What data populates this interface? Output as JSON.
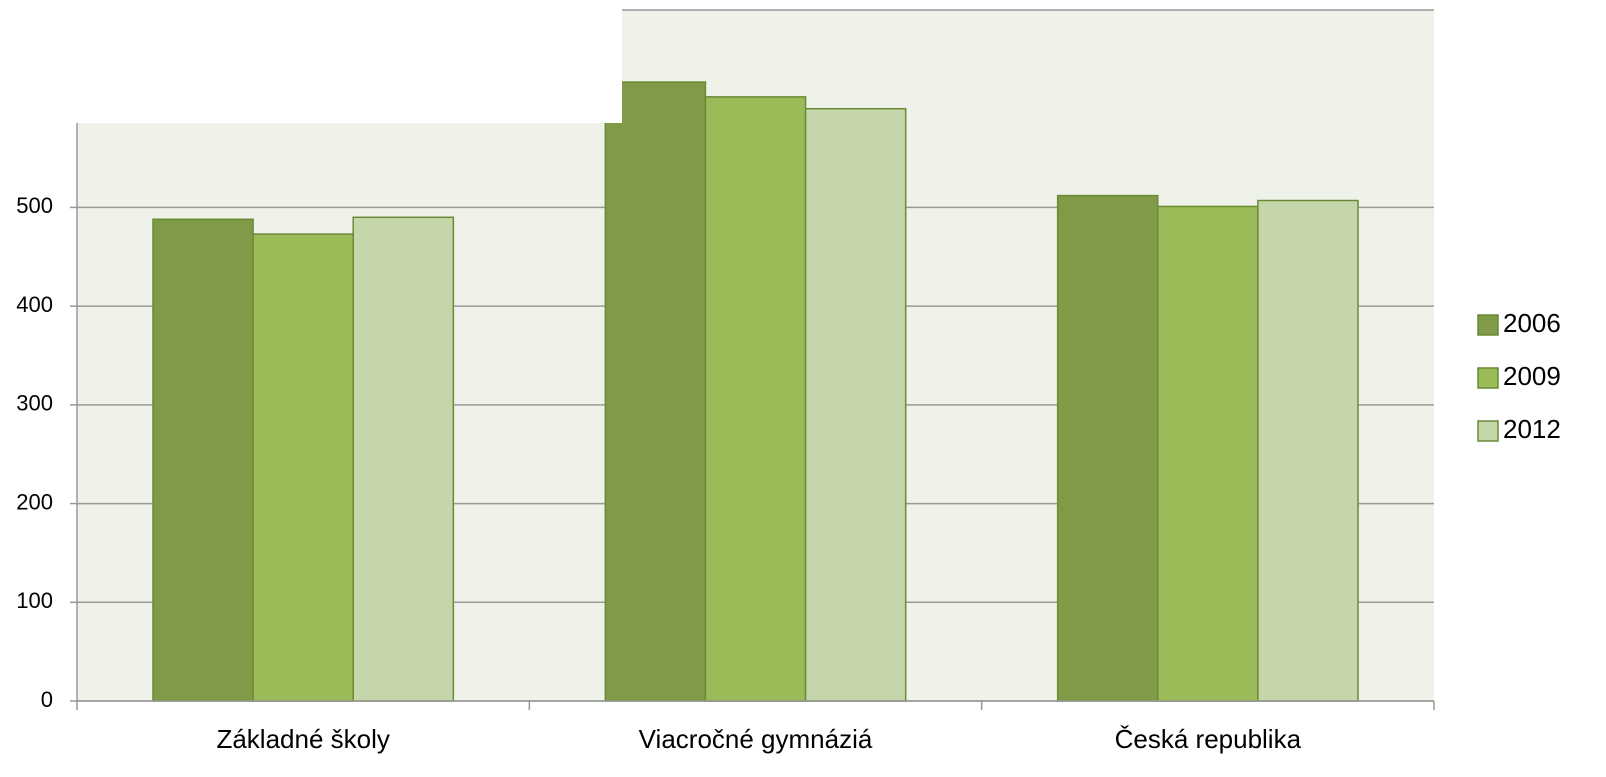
{
  "chart_data": {
    "type": "bar",
    "categories": [
      "Základné školy",
      "Viacročné gymnáziá",
      "Česká republika"
    ],
    "series": [
      {
        "name": "2006",
        "color": "#7f9b48",
        "values": [
          488,
          627,
          512
        ]
      },
      {
        "name": "2009",
        "color": "#9bbb59",
        "values": [
          473,
          612,
          501
        ]
      },
      {
        "name": "2012",
        "color": "#c6d6ab",
        "values": [
          490,
          600,
          507
        ]
      }
    ],
    "ylim": [
      0,
      700
    ],
    "yticks": [
      0,
      100,
      200,
      300,
      400,
      500
    ],
    "grid": true,
    "legend": "right"
  }
}
